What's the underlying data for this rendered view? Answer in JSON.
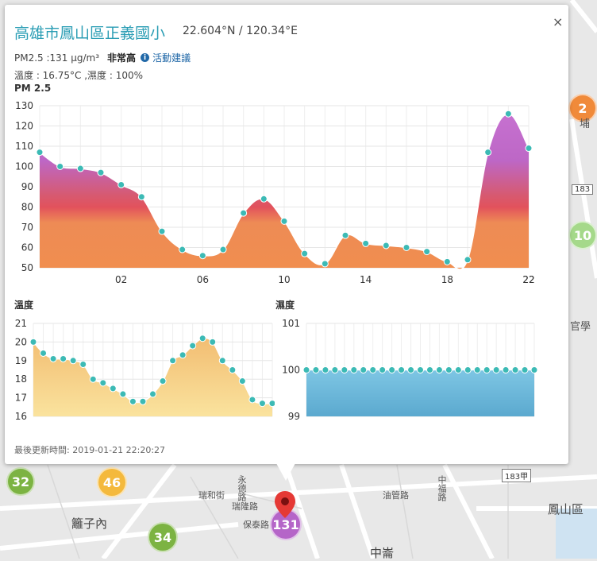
{
  "popup": {
    "title": "高雄市鳳山區正義國小",
    "coords": "22.604°N / 120.34°E",
    "pm_text": "PM2.5 :131 μg/m³",
    "level": "非常高",
    "advice_label": "活動建議",
    "weather": "溫度 : 16.75°C ,濕度 : 100%",
    "updated": "最後更新時間: 2019-01-21 22:20:27",
    "close_glyph": "×"
  },
  "chart_data": [
    {
      "type": "area",
      "title": "PM 2.5",
      "x": [
        "22",
        "23",
        "00",
        "01",
        "02",
        "03",
        "04",
        "05",
        "06",
        "07",
        "08",
        "09",
        "10",
        "11",
        "12",
        "13",
        "14",
        "15",
        "16",
        "17",
        "18",
        "19",
        "20",
        "21",
        "22"
      ],
      "xticks": [
        "22",
        "02",
        "06",
        "10",
        "14",
        "18",
        "22"
      ],
      "values": [
        107,
        100,
        99,
        97,
        91,
        85,
        68,
        59,
        56,
        59,
        77,
        84,
        73,
        57,
        52,
        66,
        62,
        61,
        60,
        58,
        53,
        54,
        107,
        126,
        109
      ],
      "ylim": [
        50,
        130
      ],
      "yticks": [
        50,
        60,
        70,
        80,
        90,
        100,
        110,
        120,
        130
      ],
      "grid": true
    },
    {
      "type": "area",
      "title": "溫度",
      "values": [
        20.0,
        19.4,
        19.1,
        19.1,
        19.0,
        18.8,
        18.0,
        17.8,
        17.5,
        17.2,
        16.8,
        16.8,
        17.2,
        17.9,
        19.0,
        19.3,
        19.8,
        20.2,
        20.0,
        19.0,
        18.5,
        17.9,
        16.9,
        16.7,
        16.7
      ],
      "ylim": [
        16,
        21
      ],
      "yticks": [
        16,
        17,
        18,
        19,
        20,
        21
      ],
      "grid": true
    },
    {
      "type": "area",
      "title": "濕度",
      "values": [
        100,
        100,
        100,
        100,
        100,
        100,
        100,
        100,
        100,
        100,
        100,
        100,
        100,
        100,
        100,
        100,
        100,
        100,
        100,
        100,
        100,
        100,
        100,
        100,
        100
      ],
      "ylim": [
        99,
        101
      ],
      "yticks": [
        99,
        100,
        101
      ],
      "grid": true
    }
  ],
  "map": {
    "markers": [
      {
        "label": "32",
        "color": "#7cb342"
      },
      {
        "label": "46",
        "color": "#f4b93c"
      },
      {
        "label": "34",
        "color": "#7cb342"
      },
      {
        "label": "131",
        "color": "#b565c8"
      },
      {
        "label": "10",
        "color": "#a5d98a"
      },
      {
        "label": "2",
        "color": "#f08a3a"
      }
    ],
    "labels": [
      "籬子內",
      "瑞和街",
      "瑞隆路",
      "永德路",
      "油管路",
      "中崙",
      "鳳山區",
      "保泰路",
      "中福路",
      "埔",
      "官學"
    ],
    "shields": [
      "183",
      "183甲"
    ]
  }
}
